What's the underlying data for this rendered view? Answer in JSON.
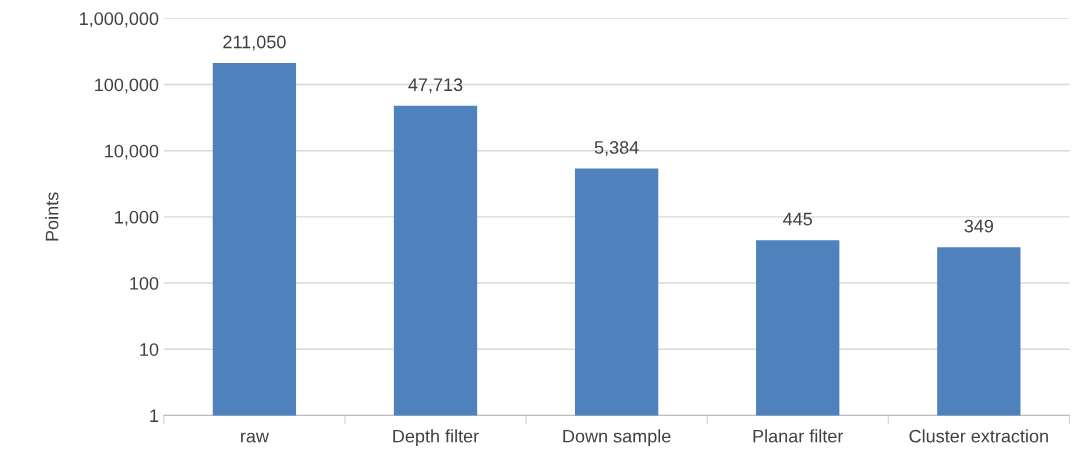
{
  "chart_data": {
    "type": "bar",
    "ylabel": "Points",
    "categories": [
      "raw",
      "Depth filter",
      "Down sample",
      "Planar filter",
      "Cluster extraction"
    ],
    "values": [
      211050,
      47713,
      5384,
      445,
      349
    ],
    "value_labels": [
      "211,050",
      "47,713",
      "5,384",
      "445",
      "349"
    ],
    "color": "#4f81bd",
    "log": true,
    "ylim": [
      1,
      1000000
    ],
    "yticks": [
      {
        "value": 1,
        "label": "1"
      },
      {
        "value": 10,
        "label": "10"
      },
      {
        "value": 100,
        "label": "100"
      },
      {
        "value": 1000,
        "label": "1,000"
      },
      {
        "value": 10000,
        "label": "10,000"
      },
      {
        "value": 100000,
        "label": "100,000"
      },
      {
        "value": 1000000,
        "label": "1,000,000"
      }
    ],
    "grid": "y"
  }
}
